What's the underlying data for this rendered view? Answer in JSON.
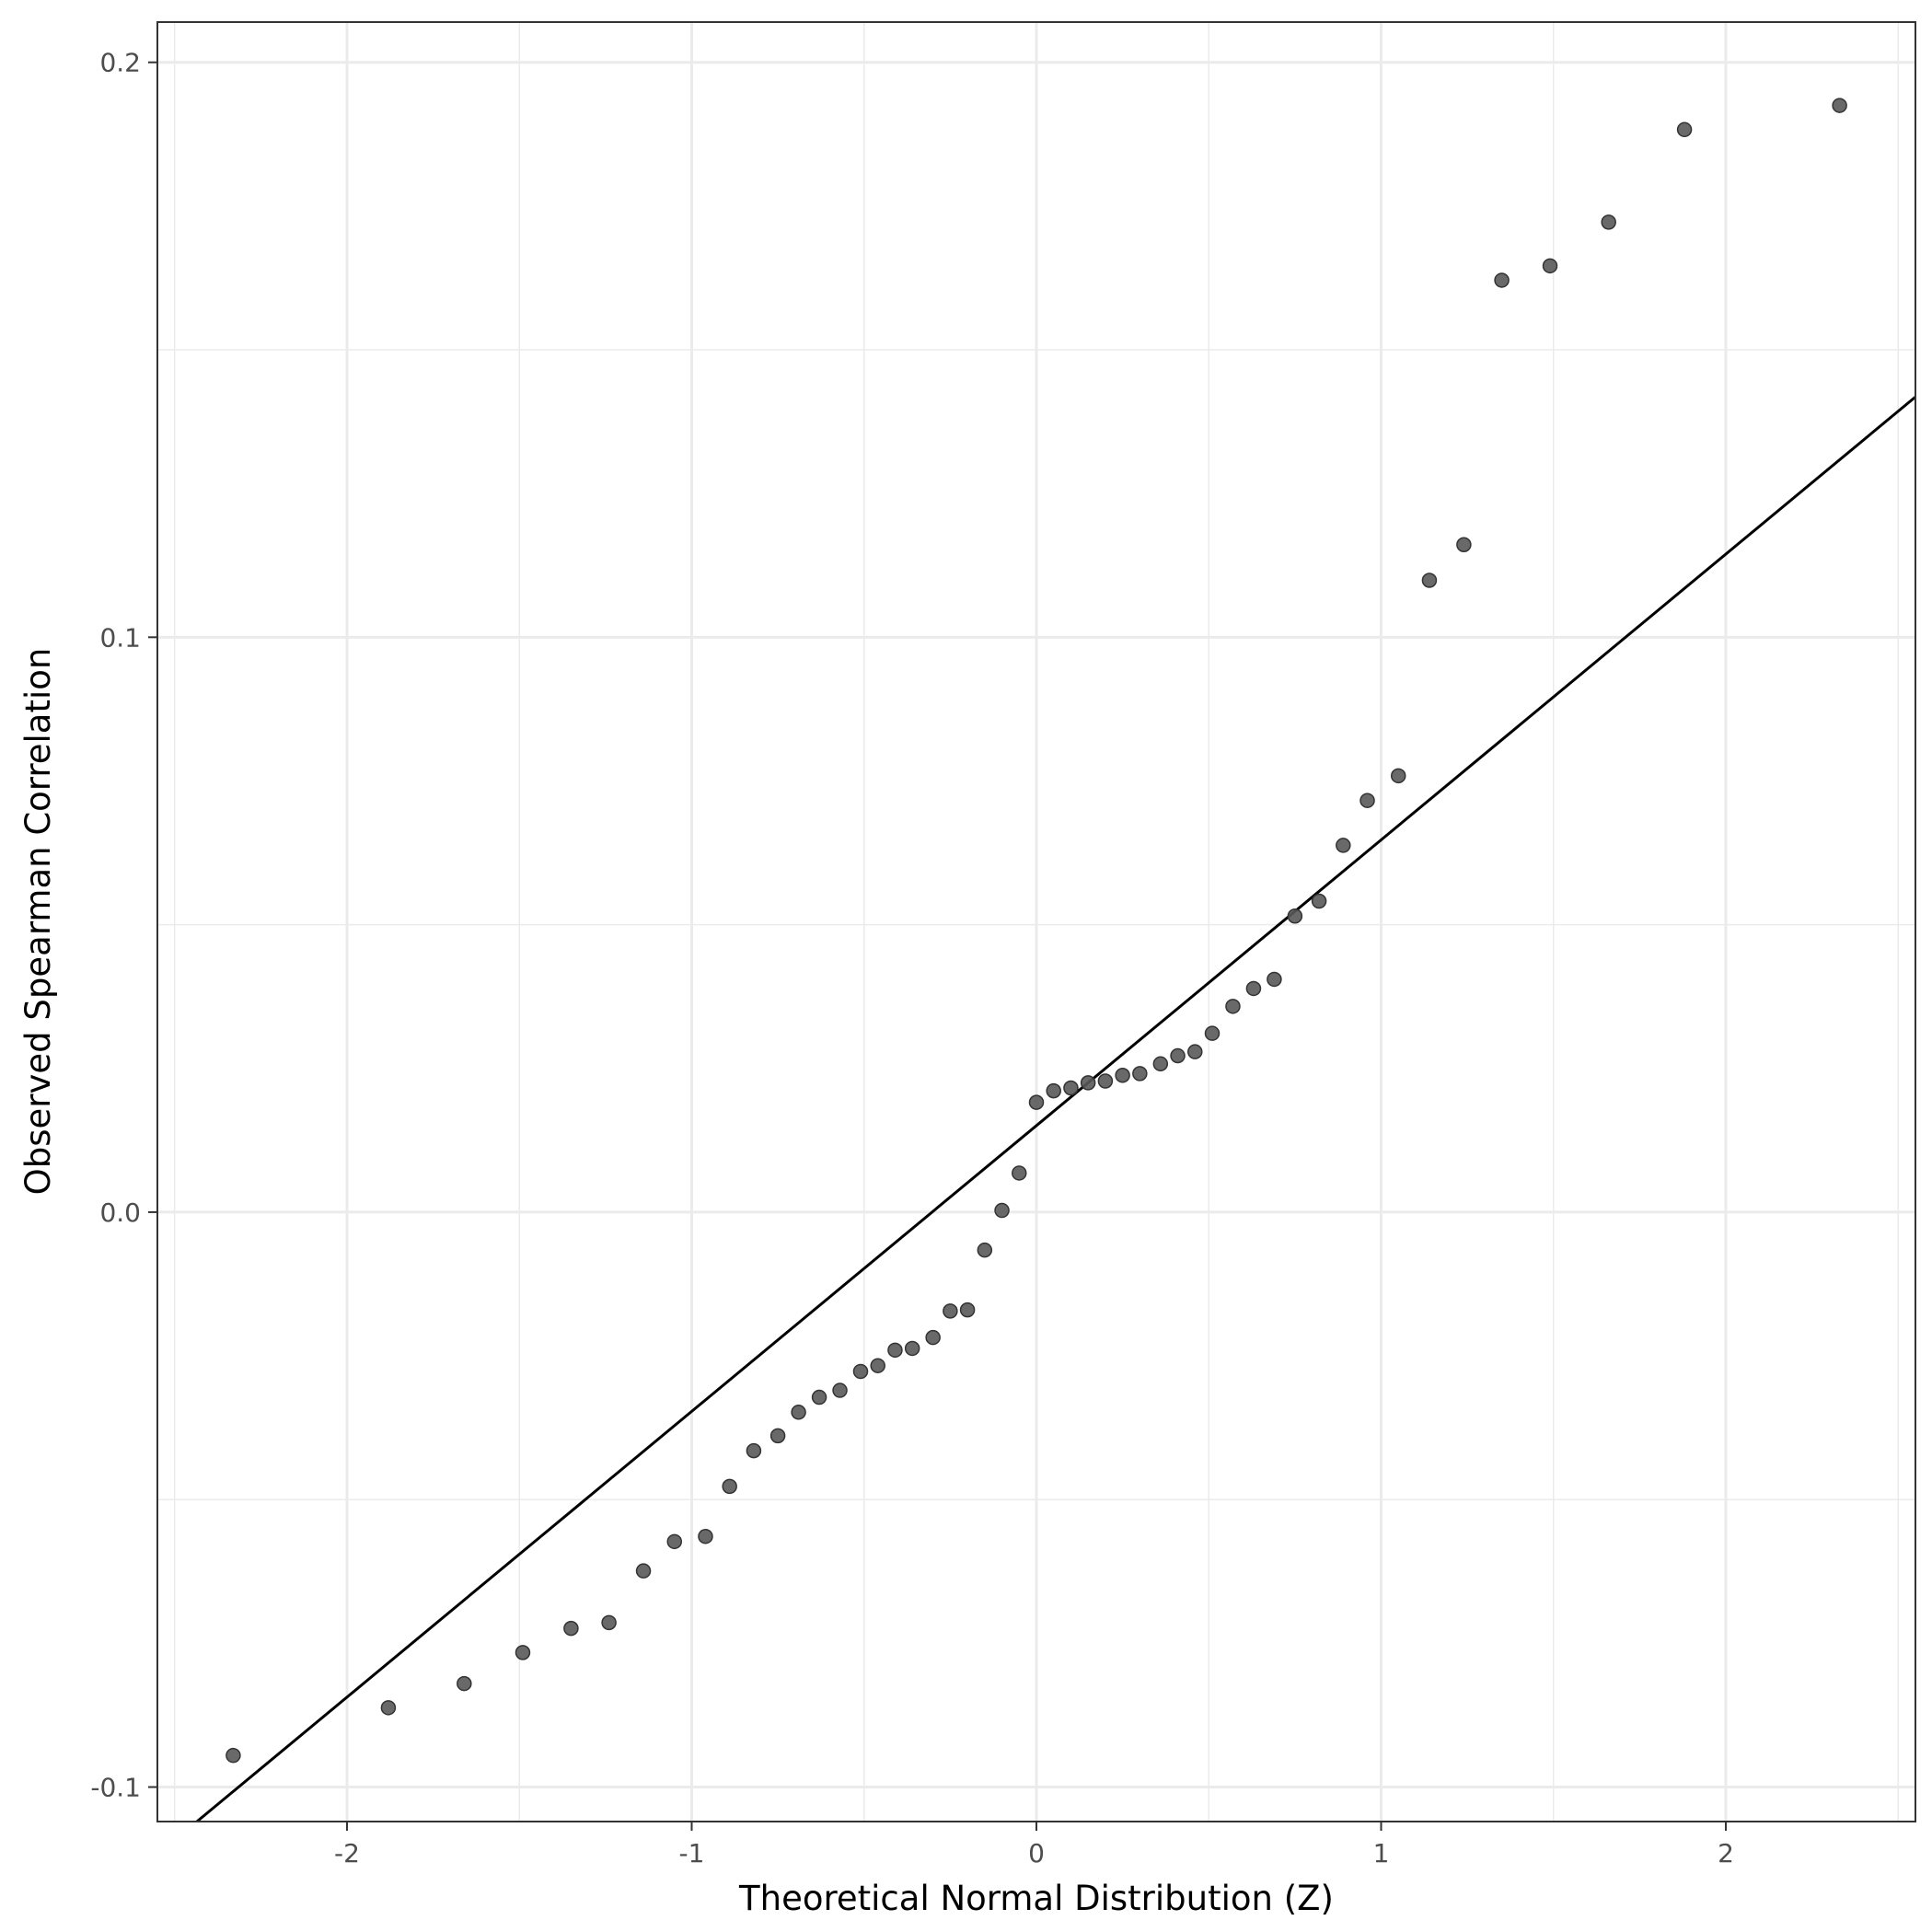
{
  "chart_data": {
    "type": "scatter",
    "title": "",
    "xlabel": "Theoretical Normal Distribution (Z)",
    "ylabel": "Observed Spearman Correlation",
    "xlim": [
      -2.55,
      2.55
    ],
    "ylim": [
      -0.106,
      0.207
    ],
    "x_ticks": [
      -2,
      -1,
      0,
      1,
      2
    ],
    "x_tick_labels": [
      "-2",
      "-1",
      "0",
      "1",
      "2"
    ],
    "y_ticks": [
      -0.1,
      0.0,
      0.1,
      0.2
    ],
    "y_tick_labels": [
      "-0.1",
      "0.0",
      "0.1",
      "0.2"
    ],
    "grid": true,
    "legend": "none",
    "colors": {
      "points": "#595959",
      "point_stroke": "#333333",
      "line": "#000000",
      "grid": "#ebebeb",
      "panel_border": "#333333"
    },
    "points": {
      "x": [
        -2.33,
        -1.88,
        -1.66,
        -1.49,
        -1.35,
        -1.24,
        -1.14,
        -1.05,
        -0.96,
        -0.89,
        -0.82,
        -0.75,
        -0.69,
        -0.63,
        -0.57,
        -0.51,
        -0.46,
        -0.41,
        -0.36,
        -0.3,
        -0.25,
        -0.2,
        -0.15,
        -0.1,
        -0.05,
        0.0,
        0.05,
        0.1,
        0.15,
        0.2,
        0.25,
        0.3,
        0.36,
        0.41,
        0.46,
        0.51,
        0.57,
        0.63,
        0.69,
        0.75,
        0.82,
        0.89,
        0.96,
        1.05,
        1.14,
        1.24,
        1.35,
        1.49,
        1.66,
        1.88,
        2.33
      ],
      "y": [
        -0.0945,
        -0.0862,
        -0.082,
        -0.0766,
        -0.0724,
        -0.0714,
        -0.0624,
        -0.0573,
        -0.0564,
        -0.0477,
        -0.0415,
        -0.0389,
        -0.0348,
        -0.0322,
        -0.031,
        -0.0277,
        -0.0267,
        -0.024,
        -0.0237,
        -0.0218,
        -0.0172,
        -0.017,
        -0.0066,
        0.0003,
        0.0068,
        0.0191,
        0.0211,
        0.0216,
        0.0225,
        0.0228,
        0.0238,
        0.0241,
        0.0258,
        0.0272,
        0.0279,
        0.0311,
        0.0358,
        0.0389,
        0.0405,
        0.0515,
        0.0541,
        0.0638,
        0.0716,
        0.0759,
        0.1099,
        0.1161,
        0.1621,
        0.1646,
        0.1722,
        0.1883,
        0.1925
      ]
    },
    "reference_line": {
      "x": [
        -2.55,
        2.55
      ],
      "y": [
        -0.1117,
        0.1418
      ]
    }
  }
}
